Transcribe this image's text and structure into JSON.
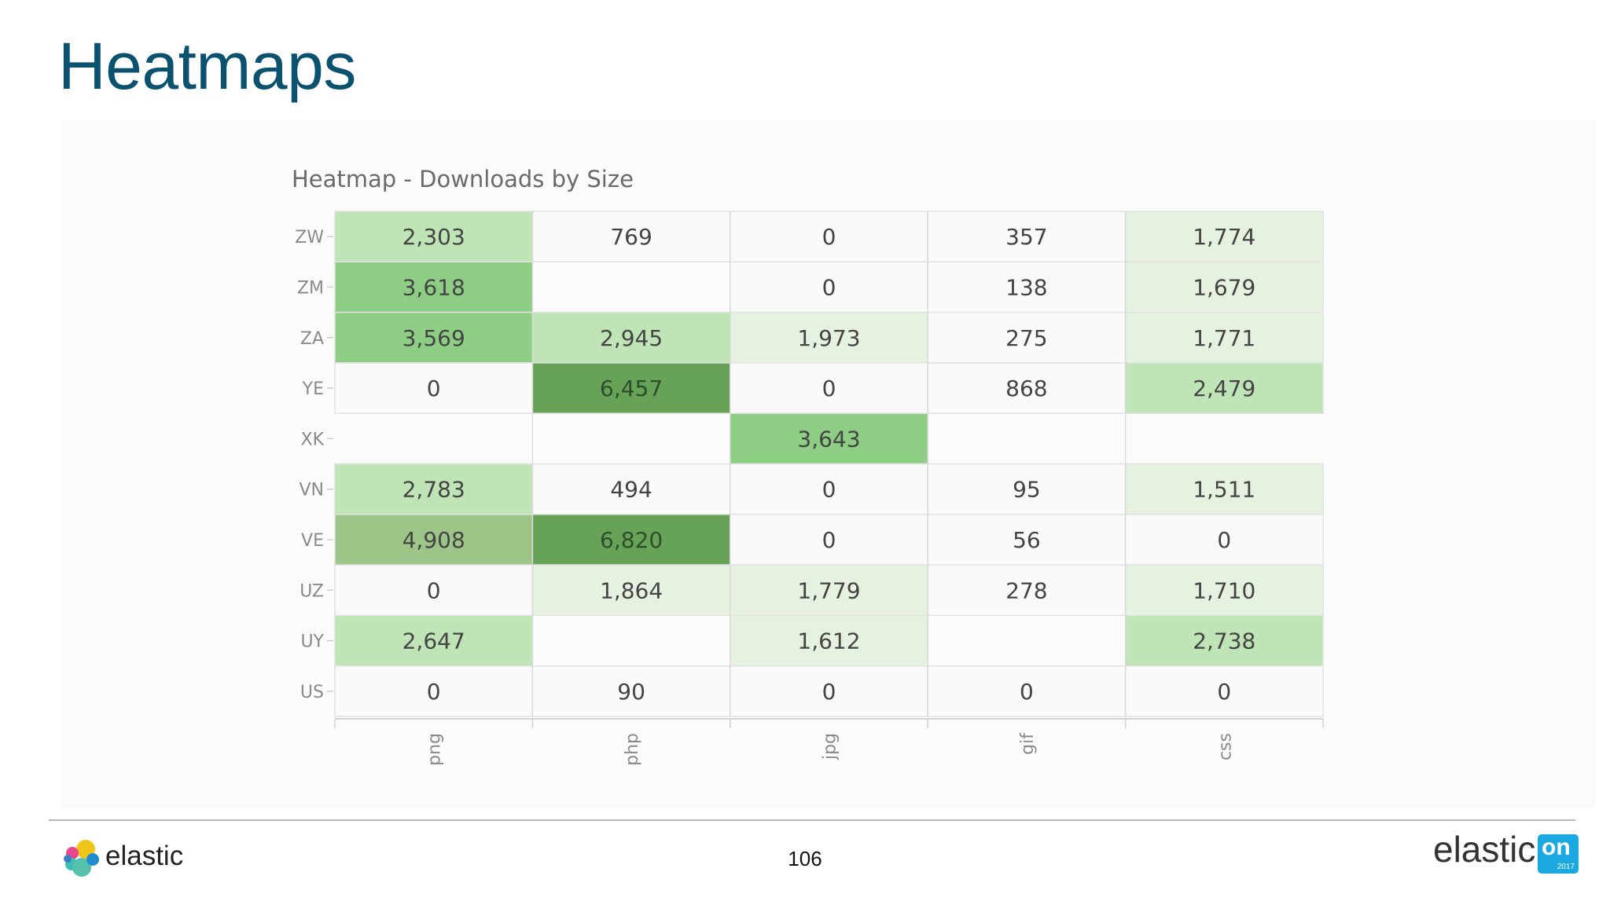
{
  "slide": {
    "title": "Heatmaps",
    "page_number": "106"
  },
  "footer": {
    "logo_text": "elastic",
    "event_logo_text": "elastic",
    "event_badge": "on",
    "event_year": "2017"
  },
  "colors": {
    "title": "#0b5270",
    "scale": [
      "#fafafa",
      "#e5f2df",
      "#bfe5b6",
      "#8dce84",
      "#9cc587",
      "#66a356"
    ]
  },
  "chart_data": {
    "type": "heatmap",
    "title": "Heatmap - Downloads by Size",
    "x_categories": [
      "png",
      "php",
      "jpg",
      "gif",
      "css"
    ],
    "y_categories": [
      "ZW",
      "ZM",
      "ZA",
      "YE",
      "XK",
      "VN",
      "VE",
      "UZ",
      "UY",
      "US"
    ],
    "values": [
      [
        2303,
        769,
        0,
        357,
        1774
      ],
      [
        3618,
        null,
        0,
        138,
        1679
      ],
      [
        3569,
        2945,
        1973,
        275,
        1771
      ],
      [
        0,
        6457,
        0,
        868,
        2479
      ],
      [
        null,
        null,
        3643,
        null,
        null
      ],
      [
        2783,
        494,
        0,
        95,
        1511
      ],
      [
        4908,
        6820,
        0,
        56,
        0
      ],
      [
        0,
        1864,
        1779,
        278,
        1710
      ],
      [
        2647,
        null,
        1612,
        null,
        2738
      ],
      [
        0,
        90,
        0,
        0,
        0
      ]
    ],
    "value_labels": [
      [
        "2,303",
        "769",
        "0",
        "357",
        "1,774"
      ],
      [
        "3,618",
        "",
        "0",
        "138",
        "1,679"
      ],
      [
        "3,569",
        "2,945",
        "1,973",
        "275",
        "1,771"
      ],
      [
        "0",
        "6,457",
        "0",
        "868",
        "2,479"
      ],
      [
        "",
        "",
        "3,643",
        "",
        ""
      ],
      [
        "2,783",
        "494",
        "0",
        "95",
        "1,511"
      ],
      [
        "4,908",
        "6,820",
        "0",
        "56",
        "0"
      ],
      [
        "0",
        "1,864",
        "1,779",
        "278",
        "1,710"
      ],
      [
        "2,647",
        "",
        "1,612",
        "",
        "2,738"
      ],
      [
        "0",
        "90",
        "0",
        "0",
        "0"
      ]
    ],
    "color_ranges": [
      0,
      1500,
      2000,
      3000,
      4500,
      6000
    ],
    "grid": true,
    "legend": "none"
  }
}
